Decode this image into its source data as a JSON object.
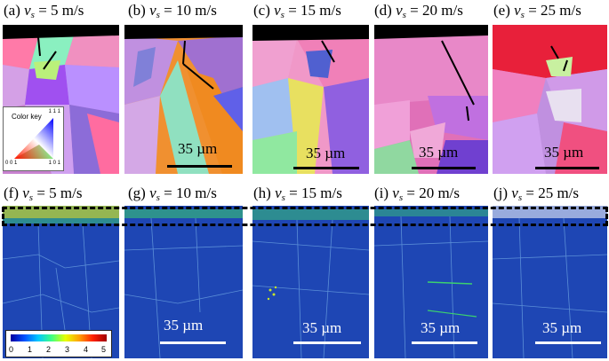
{
  "top_panels": [
    {
      "label_prefix": "(a)",
      "var": "v",
      "sub": "s",
      "value": "= 5 m/s"
    },
    {
      "label_prefix": "(b)",
      "var": "v",
      "sub": "s",
      "value": "= 10 m/s"
    },
    {
      "label_prefix": "(c)",
      "var": "v",
      "sub": "s",
      "value": "= 15 m/s"
    },
    {
      "label_prefix": "(d)",
      "var": "v",
      "sub": "s",
      "value": "= 20 m/s"
    },
    {
      "label_prefix": "(e)",
      "var": "v",
      "sub": "s",
      "value": "= 25 m/s"
    }
  ],
  "bottom_panels": [
    {
      "label_prefix": "(f)",
      "var": "v",
      "sub": "s",
      "value": "= 5 m/s"
    },
    {
      "label_prefix": "(g)",
      "var": "v",
      "sub": "s",
      "value": "= 10 m/s"
    },
    {
      "label_prefix": "(h)",
      "var": "v",
      "sub": "s",
      "value": "= 15 m/s"
    },
    {
      "label_prefix": "(i)",
      "var": "v",
      "sub": "s",
      "value": "= 20 m/s"
    },
    {
      "label_prefix": "(j)",
      "var": "v",
      "sub": "s",
      "value": "= 25 m/s"
    }
  ],
  "scale_bar_label": "35 µm",
  "color_key": {
    "title": "Color key",
    "corner_111": "1 1 1",
    "corner_001": "0 0 1",
    "corner_101": "1 0 1"
  },
  "colorbar_ticks": [
    "0",
    "1",
    "2",
    "3",
    "4",
    "5"
  ],
  "colors": {
    "kam_background": "#1e46b4",
    "kam_boundary": "#3cd26e",
    "kam_surface": "#c8e628",
    "dashed_box": "#000000"
  }
}
